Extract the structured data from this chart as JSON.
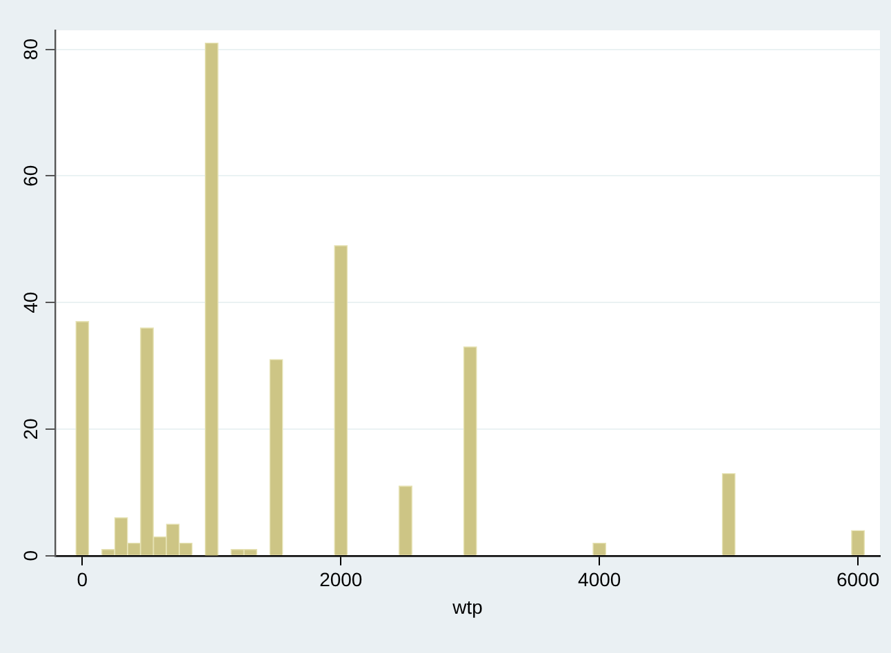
{
  "chart_data": {
    "type": "histogram",
    "xlabel": "wtp",
    "bins": [
      -50,
      50,
      150,
      250,
      350,
      450,
      550,
      650,
      750,
      850,
      950,
      1050,
      1150,
      1250,
      1350,
      1450,
      1550,
      1650,
      1750,
      1850,
      1950,
      2050,
      2150,
      2250,
      2350,
      2450,
      2550,
      2650,
      2750,
      2850,
      2950,
      3050,
      3150,
      3250,
      3350,
      3450,
      3550,
      3650,
      3750,
      3850,
      3950,
      4050,
      4150,
      4250,
      4350,
      4450,
      4550,
      4650,
      4750,
      4850,
      4950,
      5050,
      5150,
      5250,
      5350,
      5450,
      5550,
      5650,
      5750,
      5850,
      5950,
      6050
    ],
    "values": [
      37,
      0,
      1,
      6,
      2,
      36,
      3,
      5,
      2,
      0,
      81,
      0,
      1,
      1,
      0,
      31,
      0,
      0,
      0,
      0,
      49,
      0,
      0,
      0,
      0,
      11,
      0,
      0,
      0,
      0,
      33,
      0,
      0,
      0,
      0,
      0,
      0,
      0,
      0,
      0,
      2,
      0,
      0,
      0,
      0,
      0,
      0,
      0,
      0,
      0,
      13,
      0,
      0,
      0,
      0,
      0,
      0,
      0,
      0,
      0,
      4
    ],
    "color": "#cdc585",
    "xlim": [
      -210,
      6170
    ],
    "xticks": [
      0,
      2000,
      4000,
      6000
    ],
    "ylim": [
      0,
      83
    ],
    "yticks": [
      0,
      20,
      40,
      60,
      80
    ],
    "grid": "y",
    "legend": false
  }
}
